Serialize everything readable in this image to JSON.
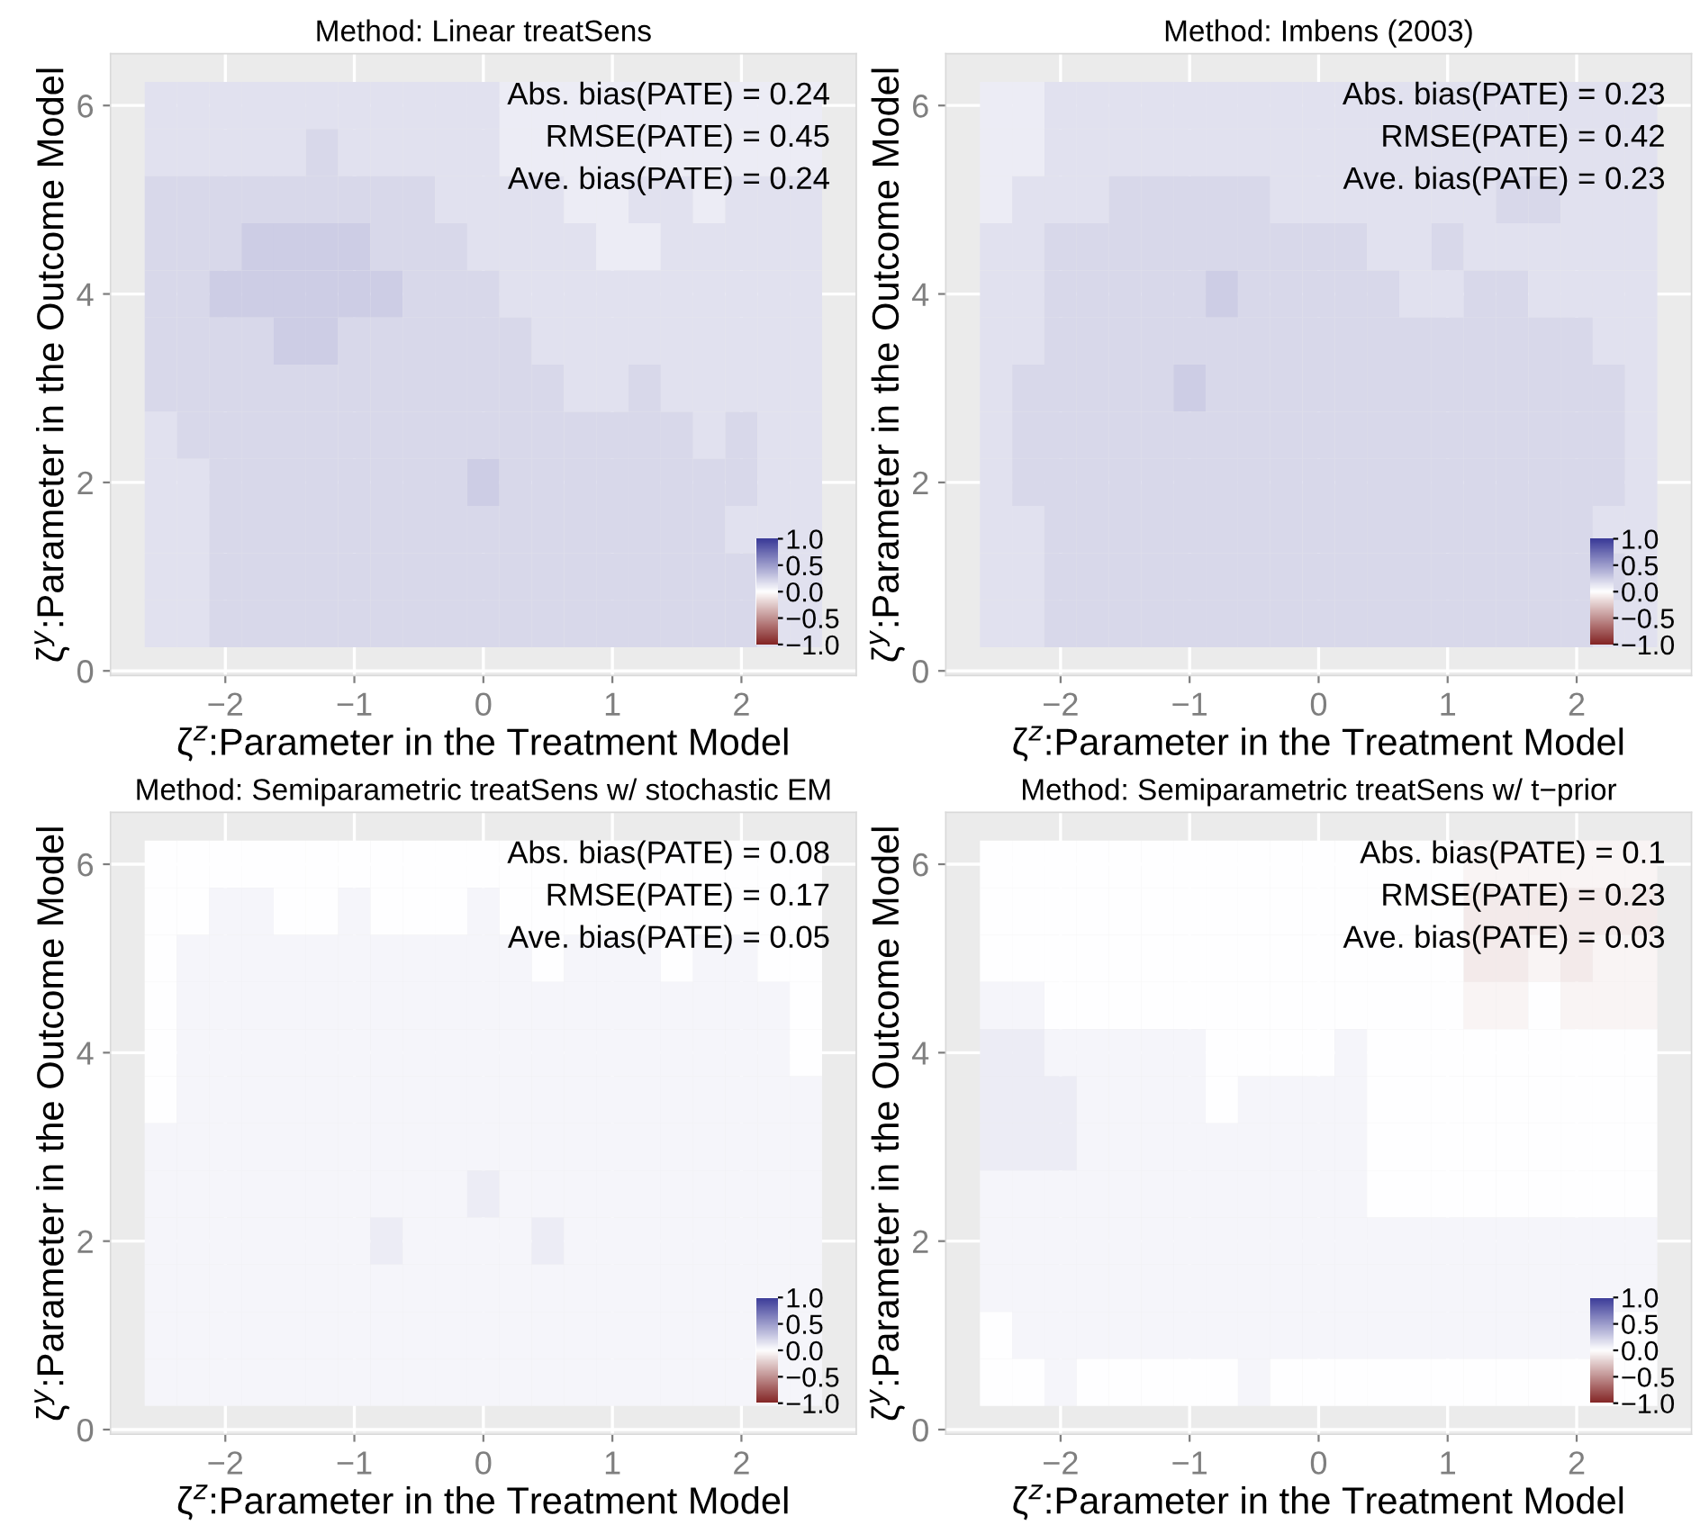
{
  "chart_data": [
    {
      "type": "heatmap",
      "title": "Method: Linear treatSens",
      "xlabel": "ζ$^{z}$:Parameter in the Treatment Model",
      "ylabel": "ζ$^{y}$:Parameter in the Outcome Model",
      "x": [
        -2.5,
        -2.25,
        -2.0,
        -1.75,
        -1.5,
        -1.25,
        -1.0,
        -0.75,
        -0.5,
        -0.25,
        0.0,
        0.25,
        0.5,
        0.75,
        1.0,
        1.25,
        1.5,
        1.75,
        2.0,
        2.25,
        2.5
      ],
      "y": [
        6.0,
        5.5,
        5.0,
        4.5,
        4.0,
        3.5,
        3.0,
        2.5,
        2.0,
        1.5,
        1.0,
        0.5
      ],
      "cells": [
        [
          0.15,
          0.15,
          0.15,
          0.15,
          0.15,
          0.15,
          0.15,
          0.15,
          0.15,
          0.15,
          0.15,
          0.1,
          0.1,
          0.1,
          0.1,
          0.1,
          0.1,
          0.1,
          0.1,
          0.1,
          0.1
        ],
        [
          0.15,
          0.15,
          0.15,
          0.15,
          0.15,
          0.2,
          0.15,
          0.15,
          0.15,
          0.15,
          0.15,
          0.1,
          0.1,
          0.1,
          0.1,
          0.1,
          0.1,
          0.1,
          0.1,
          0.1,
          0.1
        ],
        [
          0.2,
          0.2,
          0.2,
          0.2,
          0.2,
          0.2,
          0.2,
          0.2,
          0.2,
          0.15,
          0.15,
          0.15,
          0.15,
          0.1,
          0.1,
          0.15,
          0.15,
          0.1,
          0.15,
          0.15,
          0.15
        ],
        [
          0.2,
          0.2,
          0.2,
          0.25,
          0.25,
          0.25,
          0.25,
          0.2,
          0.2,
          0.2,
          0.15,
          0.15,
          0.15,
          0.15,
          0.1,
          0.1,
          0.15,
          0.15,
          0.15,
          0.15,
          0.15
        ],
        [
          0.2,
          0.2,
          0.25,
          0.25,
          0.25,
          0.25,
          0.25,
          0.25,
          0.2,
          0.2,
          0.2,
          0.15,
          0.15,
          0.15,
          0.15,
          0.15,
          0.15,
          0.15,
          0.15,
          0.15,
          0.15
        ],
        [
          0.2,
          0.2,
          0.2,
          0.2,
          0.25,
          0.25,
          0.2,
          0.2,
          0.2,
          0.2,
          0.2,
          0.2,
          0.15,
          0.15,
          0.15,
          0.15,
          0.15,
          0.15,
          0.15,
          0.15,
          0.15
        ],
        [
          0.2,
          0.2,
          0.2,
          0.2,
          0.2,
          0.2,
          0.2,
          0.2,
          0.2,
          0.2,
          0.2,
          0.2,
          0.2,
          0.15,
          0.15,
          0.2,
          0.15,
          0.15,
          0.15,
          0.15,
          0.15
        ],
        [
          0.15,
          0.2,
          0.2,
          0.2,
          0.2,
          0.2,
          0.2,
          0.2,
          0.2,
          0.2,
          0.2,
          0.2,
          0.2,
          0.2,
          0.2,
          0.2,
          0.2,
          0.15,
          0.2,
          0.15,
          0.15
        ],
        [
          0.15,
          0.15,
          0.2,
          0.2,
          0.2,
          0.2,
          0.2,
          0.2,
          0.2,
          0.2,
          0.25,
          0.2,
          0.2,
          0.2,
          0.2,
          0.2,
          0.2,
          0.2,
          0.2,
          0.15,
          0.15
        ],
        [
          0.15,
          0.15,
          0.2,
          0.2,
          0.2,
          0.2,
          0.2,
          0.2,
          0.2,
          0.2,
          0.2,
          0.2,
          0.2,
          0.2,
          0.2,
          0.2,
          0.2,
          0.2,
          0.15,
          0.15,
          0.15
        ],
        [
          0.15,
          0.15,
          0.2,
          0.2,
          0.2,
          0.2,
          0.2,
          0.2,
          0.2,
          0.2,
          0.2,
          0.2,
          0.2,
          0.2,
          0.2,
          0.2,
          0.2,
          0.2,
          0.2,
          0.15,
          0.15
        ],
        [
          0.15,
          0.15,
          0.2,
          0.2,
          0.2,
          0.2,
          0.2,
          0.2,
          0.2,
          0.2,
          0.2,
          0.2,
          0.2,
          0.2,
          0.2,
          0.2,
          0.2,
          0.2,
          0.2,
          0.15,
          0.15
        ]
      ],
      "clim": [
        -1,
        1
      ],
      "cticks": [
        {
          "value": 1,
          "label": "1.0"
        },
        {
          "value": 0.5,
          "label": "0.5"
        },
        {
          "value": 0,
          "label": "0.0"
        },
        {
          "value": -0.5,
          "label": "−0.5"
        },
        {
          "value": -1,
          "label": "−1.0"
        }
      ],
      "xlim": [
        -2.89,
        2.89
      ],
      "ylim": [
        -0.05,
        6.55
      ],
      "xticks": [
        -2,
        -1,
        0,
        1,
        2
      ],
      "yticks": [
        0,
        2,
        4,
        6
      ],
      "grid": true,
      "annotations": [
        "Abs. bias(PATE) = 0.24",
        "RMSE(PATE) = 0.45",
        "Ave. bias(PATE) = 0.24"
      ]
    },
    {
      "type": "heatmap",
      "title": "Method: Imbens (2003)",
      "xlabel": "ζ$^{z}$:Parameter in the Treatment Model",
      "ylabel": "ζ$^{y}$:Parameter in the Outcome Model",
      "x": [
        -2.5,
        -2.25,
        -2.0,
        -1.75,
        -1.5,
        -1.25,
        -1.0,
        -0.75,
        -0.5,
        -0.25,
        0.0,
        0.25,
        0.5,
        0.75,
        1.0,
        1.25,
        1.5,
        1.75,
        2.0,
        2.25,
        2.5
      ],
      "y": [
        6.0,
        5.5,
        5.0,
        4.5,
        4.0,
        3.5,
        3.0,
        2.5,
        2.0,
        1.5,
        1.0,
        0.5
      ],
      "cells": [
        [
          0.1,
          0.1,
          0.15,
          0.15,
          0.15,
          0.15,
          0.15,
          0.15,
          0.15,
          0.15,
          0.15,
          0.15,
          0.15,
          0.15,
          0.15,
          0.15,
          0.15,
          0.15,
          0.15,
          0.15,
          0.15
        ],
        [
          0.1,
          0.1,
          0.15,
          0.15,
          0.15,
          0.15,
          0.15,
          0.15,
          0.15,
          0.15,
          0.15,
          0.15,
          0.15,
          0.15,
          0.15,
          0.15,
          0.15,
          0.15,
          0.15,
          0.15,
          0.15
        ],
        [
          0.1,
          0.15,
          0.15,
          0.15,
          0.2,
          0.2,
          0.2,
          0.2,
          0.2,
          0.15,
          0.15,
          0.15,
          0.15,
          0.15,
          0.15,
          0.15,
          0.2,
          0.2,
          0.15,
          0.15,
          0.15
        ],
        [
          0.15,
          0.15,
          0.2,
          0.2,
          0.2,
          0.2,
          0.2,
          0.2,
          0.2,
          0.2,
          0.2,
          0.2,
          0.15,
          0.15,
          0.2,
          0.15,
          0.15,
          0.15,
          0.15,
          0.15,
          0.15
        ],
        [
          0.15,
          0.15,
          0.2,
          0.2,
          0.2,
          0.2,
          0.2,
          0.25,
          0.2,
          0.2,
          0.2,
          0.2,
          0.2,
          0.15,
          0.15,
          0.2,
          0.2,
          0.15,
          0.15,
          0.15,
          0.15
        ],
        [
          0.15,
          0.15,
          0.2,
          0.2,
          0.2,
          0.2,
          0.2,
          0.2,
          0.2,
          0.2,
          0.2,
          0.2,
          0.2,
          0.2,
          0.2,
          0.2,
          0.2,
          0.2,
          0.2,
          0.15,
          0.15
        ],
        [
          0.15,
          0.2,
          0.2,
          0.2,
          0.2,
          0.2,
          0.25,
          0.2,
          0.2,
          0.2,
          0.2,
          0.2,
          0.2,
          0.2,
          0.2,
          0.2,
          0.2,
          0.2,
          0.2,
          0.2,
          0.15
        ],
        [
          0.15,
          0.2,
          0.2,
          0.2,
          0.2,
          0.2,
          0.2,
          0.2,
          0.2,
          0.2,
          0.2,
          0.2,
          0.2,
          0.2,
          0.2,
          0.2,
          0.2,
          0.2,
          0.2,
          0.2,
          0.15
        ],
        [
          0.15,
          0.2,
          0.2,
          0.2,
          0.2,
          0.2,
          0.2,
          0.2,
          0.2,
          0.2,
          0.2,
          0.2,
          0.2,
          0.2,
          0.2,
          0.2,
          0.2,
          0.2,
          0.2,
          0.2,
          0.15
        ],
        [
          0.15,
          0.15,
          0.2,
          0.2,
          0.2,
          0.2,
          0.2,
          0.2,
          0.2,
          0.2,
          0.2,
          0.2,
          0.2,
          0.2,
          0.2,
          0.2,
          0.2,
          0.2,
          0.2,
          0.15,
          0.15
        ],
        [
          0.15,
          0.15,
          0.2,
          0.2,
          0.2,
          0.2,
          0.2,
          0.2,
          0.2,
          0.2,
          0.2,
          0.2,
          0.2,
          0.2,
          0.2,
          0.2,
          0.2,
          0.2,
          0.2,
          0.2,
          0.15
        ],
        [
          0.15,
          0.15,
          0.2,
          0.2,
          0.2,
          0.2,
          0.2,
          0.2,
          0.2,
          0.2,
          0.2,
          0.2,
          0.2,
          0.2,
          0.2,
          0.2,
          0.2,
          0.2,
          0.2,
          0.15,
          0.15
        ]
      ],
      "clim": [
        -1,
        1
      ],
      "cticks": [
        {
          "value": 1,
          "label": "1.0"
        },
        {
          "value": 0.5,
          "label": "0.5"
        },
        {
          "value": 0,
          "label": "0.0"
        },
        {
          "value": -0.5,
          "label": "−0.5"
        },
        {
          "value": -1,
          "label": "−1.0"
        }
      ],
      "xlim": [
        -2.89,
        2.89
      ],
      "ylim": [
        -0.05,
        6.55
      ],
      "xticks": [
        -2,
        -1,
        0,
        1,
        2
      ],
      "yticks": [
        0,
        2,
        4,
        6
      ],
      "grid": true,
      "annotations": [
        "Abs. bias(PATE) = 0.23",
        "RMSE(PATE) = 0.42",
        "Ave. bias(PATE) = 0.23"
      ]
    },
    {
      "type": "heatmap",
      "title": "Method: Semiparametric treatSens w/ stochastic EM",
      "xlabel": "ζ$^{z}$:Parameter in the Treatment Model",
      "ylabel": "ζ$^{y}$:Parameter in the Outcome Model",
      "x": [
        -2.5,
        -2.25,
        -2.0,
        -1.75,
        -1.5,
        -1.25,
        -1.0,
        -0.75,
        -0.5,
        -0.25,
        0.0,
        0.25,
        0.5,
        0.75,
        1.0,
        1.25,
        1.5,
        1.75,
        2.0,
        2.25,
        2.5
      ],
      "y": [
        6.0,
        5.5,
        5.0,
        4.5,
        4.0,
        3.5,
        3.0,
        2.5,
        2.0,
        1.5,
        1.0,
        0.5
      ],
      "cells": [
        [
          0.0,
          0.0,
          0.0,
          0.0,
          0.0,
          0.0,
          0.0,
          0.0,
          0.0,
          0.0,
          0.0,
          0.0,
          0.0,
          0.0,
          0.0,
          0.0,
          0.0,
          0.0,
          0.0,
          0.0,
          0.0
        ],
        [
          0.0,
          0.0,
          0.05,
          0.05,
          0.0,
          0.0,
          0.05,
          0.0,
          0.0,
          0.0,
          0.05,
          0.0,
          0.0,
          0.0,
          0.0,
          0.0,
          0.0,
          0.0,
          0.0,
          0.0,
          0.0
        ],
        [
          0.0,
          0.05,
          0.05,
          0.05,
          0.05,
          0.05,
          0.05,
          0.05,
          0.05,
          0.05,
          0.05,
          0.05,
          0.0,
          0.05,
          0.05,
          0.05,
          0.0,
          0.05,
          0.05,
          0.0,
          0.0
        ],
        [
          0.0,
          0.05,
          0.05,
          0.05,
          0.05,
          0.05,
          0.05,
          0.05,
          0.05,
          0.05,
          0.05,
          0.05,
          0.05,
          0.05,
          0.05,
          0.05,
          0.05,
          0.05,
          0.05,
          0.05,
          0.0
        ],
        [
          0.0,
          0.05,
          0.05,
          0.05,
          0.05,
          0.05,
          0.05,
          0.05,
          0.05,
          0.05,
          0.05,
          0.05,
          0.05,
          0.05,
          0.05,
          0.05,
          0.05,
          0.05,
          0.05,
          0.05,
          0.0
        ],
        [
          0.0,
          0.05,
          0.05,
          0.05,
          0.05,
          0.05,
          0.05,
          0.05,
          0.05,
          0.05,
          0.05,
          0.05,
          0.05,
          0.05,
          0.05,
          0.05,
          0.05,
          0.05,
          0.05,
          0.05,
          0.05
        ],
        [
          0.05,
          0.05,
          0.05,
          0.05,
          0.05,
          0.05,
          0.05,
          0.05,
          0.05,
          0.05,
          0.05,
          0.05,
          0.05,
          0.05,
          0.05,
          0.05,
          0.05,
          0.05,
          0.05,
          0.05,
          0.05
        ],
        [
          0.05,
          0.05,
          0.05,
          0.05,
          0.05,
          0.05,
          0.05,
          0.05,
          0.05,
          0.05,
          0.1,
          0.05,
          0.05,
          0.05,
          0.05,
          0.05,
          0.05,
          0.05,
          0.05,
          0.05,
          0.05
        ],
        [
          0.05,
          0.05,
          0.05,
          0.05,
          0.05,
          0.05,
          0.05,
          0.1,
          0.05,
          0.05,
          0.05,
          0.05,
          0.1,
          0.05,
          0.05,
          0.05,
          0.05,
          0.05,
          0.05,
          0.05,
          0.05
        ],
        [
          0.05,
          0.05,
          0.05,
          0.05,
          0.05,
          0.05,
          0.05,
          0.05,
          0.05,
          0.05,
          0.05,
          0.05,
          0.05,
          0.05,
          0.05,
          0.05,
          0.05,
          0.05,
          0.05,
          0.05,
          0.05
        ],
        [
          0.05,
          0.05,
          0.05,
          0.05,
          0.05,
          0.05,
          0.05,
          0.05,
          0.05,
          0.05,
          0.05,
          0.05,
          0.05,
          0.05,
          0.05,
          0.05,
          0.05,
          0.05,
          0.05,
          0.05,
          0.05
        ],
        [
          0.05,
          0.05,
          0.05,
          0.05,
          0.05,
          0.05,
          0.05,
          0.05,
          0.05,
          0.05,
          0.05,
          0.05,
          0.05,
          0.05,
          0.05,
          0.05,
          0.05,
          0.05,
          0.05,
          0.05,
          0.05
        ]
      ],
      "clim": [
        -1,
        1
      ],
      "cticks": [
        {
          "value": 1,
          "label": "1.0"
        },
        {
          "value": 0.5,
          "label": "0.5"
        },
        {
          "value": 0,
          "label": "0.0"
        },
        {
          "value": -0.5,
          "label": "−0.5"
        },
        {
          "value": -1,
          "label": "−1.0"
        }
      ],
      "xlim": [
        -2.89,
        2.89
      ],
      "ylim": [
        -0.05,
        6.55
      ],
      "xticks": [
        -2,
        -1,
        0,
        1,
        2
      ],
      "yticks": [
        0,
        2,
        4,
        6
      ],
      "grid": true,
      "annotations": [
        "Abs. bias(PATE) = 0.08",
        "RMSE(PATE) = 0.17",
        "Ave. bias(PATE) = 0.05"
      ]
    },
    {
      "type": "heatmap",
      "title": "Method: Semiparametric treatSens w/ t−prior",
      "xlabel": "ζ$^{z}$:Parameter in the Treatment Model",
      "ylabel": "ζ$^{y}$:Parameter in the Outcome Model",
      "x": [
        -2.5,
        -2.25,
        -2.0,
        -1.75,
        -1.5,
        -1.25,
        -1.0,
        -0.75,
        -0.5,
        -0.25,
        0.0,
        0.25,
        0.5,
        0.75,
        1.0,
        1.25,
        1.5,
        1.75,
        2.0,
        2.25,
        2.5
      ],
      "y": [
        6.0,
        5.5,
        5.0,
        4.5,
        4.0,
        3.5,
        3.0,
        2.5,
        2.0,
        1.5,
        1.0,
        0.5
      ],
      "cells": [
        [
          0.0,
          0.0,
          0.0,
          0.0,
          0.0,
          0.0,
          0.0,
          0.0,
          0.0,
          0.0,
          0.0,
          0.0,
          0.0,
          0.0,
          0.0,
          -0.05,
          -0.05,
          -0.05,
          -0.05,
          -0.05,
          -0.05
        ],
        [
          0.0,
          0.0,
          0.0,
          0.0,
          0.0,
          0.0,
          0.0,
          0.0,
          0.0,
          0.0,
          0.0,
          0.0,
          0.0,
          0.0,
          0.0,
          -0.1,
          -0.1,
          -0.1,
          -0.1,
          -0.1,
          -0.1
        ],
        [
          0.0,
          0.0,
          0.0,
          0.0,
          0.0,
          0.0,
          0.0,
          0.0,
          0.0,
          0.0,
          0.0,
          0.0,
          0.0,
          0.0,
          0.0,
          -0.1,
          -0.1,
          -0.05,
          -0.1,
          -0.05,
          -0.05
        ],
        [
          0.05,
          0.05,
          0.0,
          0.0,
          0.0,
          0.0,
          0.0,
          0.0,
          0.0,
          0.0,
          0.0,
          0.0,
          0.0,
          0.0,
          0.0,
          -0.05,
          -0.05,
          0.0,
          -0.05,
          -0.05,
          -0.05
        ],
        [
          0.1,
          0.1,
          0.05,
          0.05,
          0.05,
          0.05,
          0.05,
          0.0,
          0.0,
          0.0,
          0.0,
          0.05,
          0.0,
          0.0,
          0.0,
          0.0,
          0.0,
          0.0,
          0.0,
          0.0,
          0.0
        ],
        [
          0.1,
          0.1,
          0.1,
          0.05,
          0.05,
          0.05,
          0.05,
          0.0,
          0.05,
          0.05,
          0.05,
          0.05,
          0.0,
          0.0,
          0.0,
          0.0,
          0.0,
          0.0,
          0.0,
          0.0,
          0.0
        ],
        [
          0.1,
          0.1,
          0.1,
          0.05,
          0.05,
          0.05,
          0.05,
          0.05,
          0.05,
          0.05,
          0.05,
          0.05,
          0.0,
          0.0,
          0.0,
          0.0,
          0.0,
          0.0,
          0.0,
          0.0,
          0.0
        ],
        [
          0.05,
          0.05,
          0.05,
          0.05,
          0.05,
          0.05,
          0.05,
          0.05,
          0.05,
          0.05,
          0.05,
          0.05,
          0.0,
          0.0,
          0.0,
          0.0,
          0.0,
          0.0,
          0.0,
          0.0,
          0.0
        ],
        [
          0.05,
          0.05,
          0.05,
          0.05,
          0.05,
          0.05,
          0.05,
          0.05,
          0.05,
          0.05,
          0.05,
          0.05,
          0.05,
          0.05,
          0.05,
          0.05,
          0.05,
          0.05,
          0.05,
          0.05,
          0.05
        ],
        [
          0.05,
          0.05,
          0.05,
          0.05,
          0.05,
          0.05,
          0.05,
          0.05,
          0.05,
          0.05,
          0.05,
          0.05,
          0.05,
          0.05,
          0.05,
          0.05,
          0.05,
          0.05,
          0.05,
          0.05,
          0.05
        ],
        [
          0.0,
          0.05,
          0.05,
          0.05,
          0.05,
          0.05,
          0.05,
          0.05,
          0.05,
          0.05,
          0.05,
          0.05,
          0.05,
          0.05,
          0.05,
          0.05,
          0.05,
          0.05,
          0.05,
          0.0,
          0.0
        ],
        [
          0.0,
          0.0,
          0.05,
          0.0,
          0.0,
          0.0,
          0.0,
          0.0,
          0.05,
          0.0,
          0.0,
          0.0,
          0.0,
          0.0,
          0.0,
          0.0,
          0.0,
          0.0,
          0.0,
          0.0,
          0.0
        ]
      ],
      "clim": [
        -1,
        1
      ],
      "cticks": [
        {
          "value": 1,
          "label": "1.0"
        },
        {
          "value": 0.5,
          "label": "0.5"
        },
        {
          "value": 0,
          "label": "0.0"
        },
        {
          "value": -0.5,
          "label": "−0.5"
        },
        {
          "value": -1,
          "label": "−1.0"
        }
      ],
      "xlim": [
        -2.89,
        2.89
      ],
      "ylim": [
        -0.05,
        6.55
      ],
      "xticks": [
        -2,
        -1,
        0,
        1,
        2
      ],
      "yticks": [
        0,
        2,
        4,
        6
      ],
      "grid": true,
      "annotations": [
        "Abs. bias(PATE) = 0.1",
        "RMSE(PATE) = 0.23",
        "Ave. bias(PATE) = 0.03"
      ]
    }
  ]
}
